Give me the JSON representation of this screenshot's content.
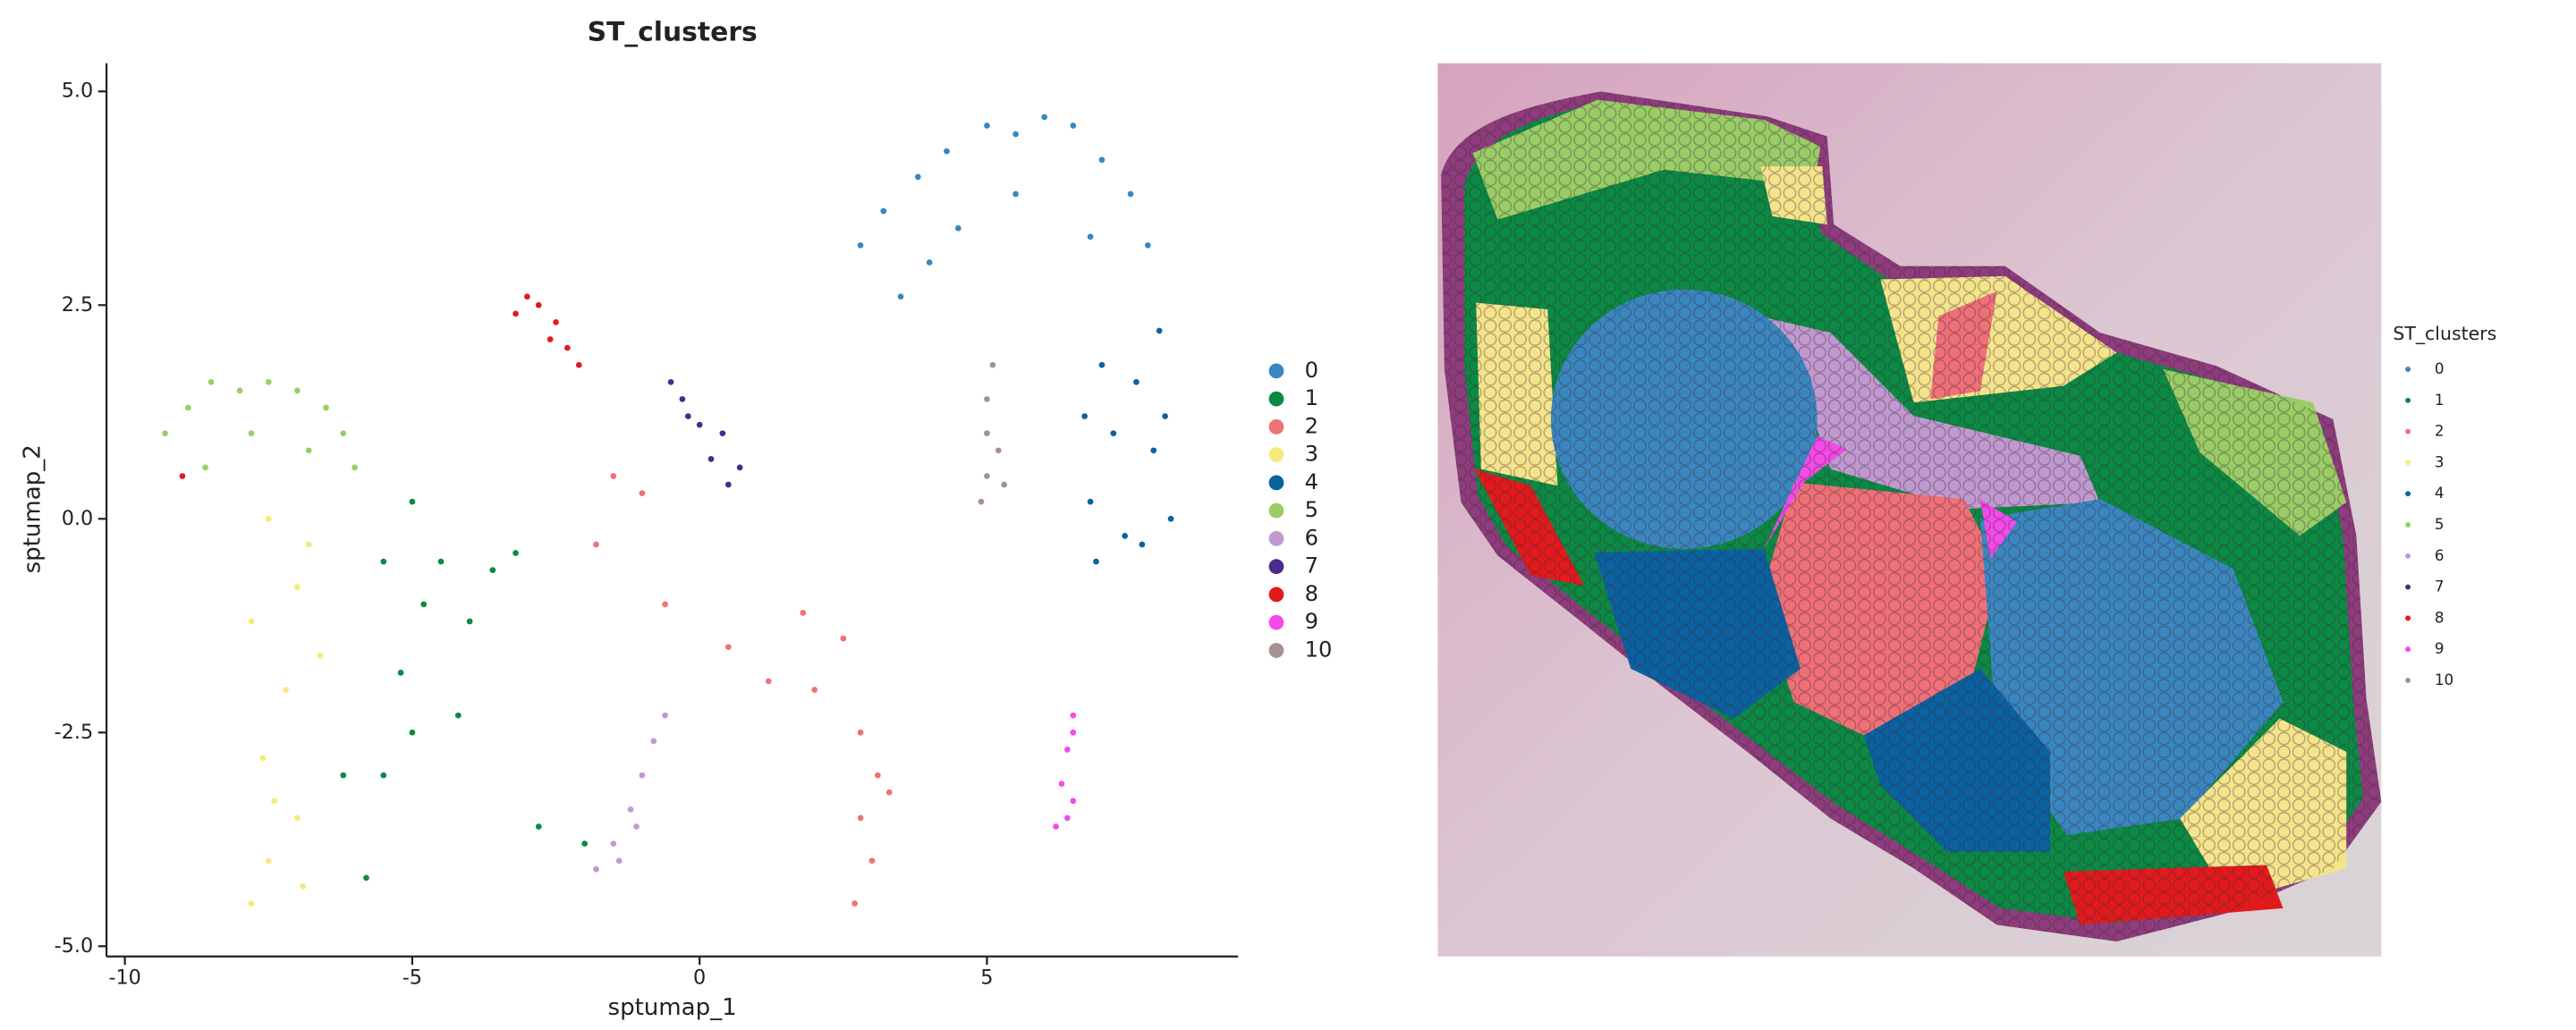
{
  "chart_data": {
    "type": "scatter",
    "title": "ST_clusters",
    "xlabel": "sptumap_1",
    "ylabel": "sptumap_2",
    "xlim": [
      -10.32,
      9.37
    ],
    "ylim": [
      -5.12,
      5.33
    ],
    "xticks": [
      -10,
      -5,
      0,
      5
    ],
    "yticks": [
      {
        "value": 5.0,
        "label": "5.0"
      },
      2.5,
      {
        "value": 0.0,
        "label": "0.0"
      },
      -2.5,
      {
        "value": -5.0,
        "label": "-5.0"
      }
    ],
    "legend": "right",
    "series": [
      {
        "name": "0",
        "color": "#3a87c0",
        "x": [
          2.8,
          3.2,
          3.8,
          4.3,
          5.0,
          5.5,
          6.0,
          6.5,
          7.0,
          7.5,
          7.8,
          4.5,
          5.5,
          6.8,
          3.5,
          4.0
        ],
        "y": [
          3.2,
          3.6,
          4.0,
          4.3,
          4.6,
          4.5,
          4.7,
          4.6,
          4.2,
          3.8,
          3.2,
          3.4,
          3.8,
          3.3,
          2.6,
          3.0
        ]
      },
      {
        "name": "1",
        "color": "#0b8a43",
        "x": [
          -6.2,
          -5.8,
          -5.5,
          -5.2,
          -5.5,
          -5.0,
          -4.5,
          -4.0,
          -3.6,
          -4.2,
          -5.0,
          -4.8,
          -3.2,
          -2.8,
          -2.0
        ],
        "y": [
          -3.0,
          -4.2,
          -3.0,
          -1.8,
          -0.5,
          0.2,
          -0.5,
          -1.2,
          -0.6,
          -2.3,
          -2.5,
          -1.0,
          -0.4,
          -3.6,
          -3.8
        ]
      },
      {
        "name": "2",
        "color": "#f07078",
        "x": [
          -1.5,
          -1.0,
          -1.8,
          -0.6,
          0.5,
          1.2,
          2.0,
          2.5,
          2.8,
          3.1,
          2.8,
          3.0,
          2.7,
          3.3,
          1.8
        ],
        "y": [
          0.5,
          0.3,
          -0.3,
          -1.0,
          -1.5,
          -1.9,
          -2.0,
          -1.4,
          -2.5,
          -3.0,
          -3.5,
          -4.0,
          -4.5,
          -3.2,
          -1.1
        ]
      },
      {
        "name": "3",
        "color": "#f5ea7c",
        "x": [
          -7.8,
          -7.5,
          -7.0,
          -7.6,
          -7.2,
          -7.8,
          -7.0,
          -7.5,
          -6.8,
          -6.6,
          -6.9,
          -7.4
        ],
        "y": [
          -4.5,
          -4.0,
          -3.5,
          -2.8,
          -2.0,
          -1.2,
          -0.8,
          0.0,
          -0.3,
          -1.6,
          -4.3,
          -3.3
        ]
      },
      {
        "name": "4",
        "color": "#0a62a0",
        "x": [
          6.8,
          7.2,
          7.6,
          8.0,
          7.9,
          7.4,
          6.9,
          8.2,
          7.0,
          7.7,
          6.7,
          8.1
        ],
        "y": [
          0.2,
          1.0,
          1.6,
          2.2,
          0.8,
          -0.2,
          -0.5,
          0.0,
          1.8,
          -0.3,
          1.2,
          1.2
        ]
      },
      {
        "name": "5",
        "color": "#9acd66",
        "x": [
          -9.3,
          -8.9,
          -8.5,
          -8.0,
          -7.5,
          -7.0,
          -6.5,
          -6.2,
          -6.0,
          -8.6,
          -7.8,
          -6.8
        ],
        "y": [
          1.0,
          1.3,
          1.6,
          1.5,
          1.6,
          1.5,
          1.3,
          1.0,
          0.6,
          0.6,
          1.0,
          0.8
        ]
      },
      {
        "name": "6",
        "color": "#c09acf",
        "x": [
          -1.8,
          -1.5,
          -1.2,
          -1.0,
          -0.8,
          -0.6,
          -1.4,
          -1.1
        ],
        "y": [
          -4.1,
          -3.8,
          -3.4,
          -3.0,
          -2.6,
          -2.3,
          -4.0,
          -3.6
        ]
      },
      {
        "name": "7",
        "color": "#4a2a8a",
        "x": [
          -0.5,
          -0.3,
          0.0,
          0.2,
          0.5,
          0.7,
          -0.2,
          0.4
        ],
        "y": [
          1.6,
          1.4,
          1.1,
          0.7,
          0.4,
          0.6,
          1.2,
          1.0
        ]
      },
      {
        "name": "8",
        "color": "#e31a1c",
        "x": [
          -3.0,
          -2.8,
          -2.5,
          -2.3,
          -2.1,
          -3.2,
          -2.6,
          -9.0
        ],
        "y": [
          2.6,
          2.5,
          2.3,
          2.0,
          1.8,
          2.4,
          2.1,
          0.5
        ]
      },
      {
        "name": "9",
        "color": "#f44ae8",
        "x": [
          6.5,
          6.4,
          6.3,
          6.5,
          6.2,
          6.4,
          6.5
        ],
        "y": [
          -2.3,
          -2.7,
          -3.1,
          -3.3,
          -3.6,
          -3.5,
          -2.5
        ]
      },
      {
        "name": "10",
        "color": "#a89090",
        "x": [
          5.0,
          5.2,
          5.0,
          5.1,
          4.9,
          5.3,
          5.0
        ],
        "y": [
          0.5,
          0.8,
          1.4,
          1.8,
          0.2,
          0.4,
          1.0
        ]
      }
    ]
  },
  "spatial": {
    "legend_title": "ST_clusters"
  }
}
